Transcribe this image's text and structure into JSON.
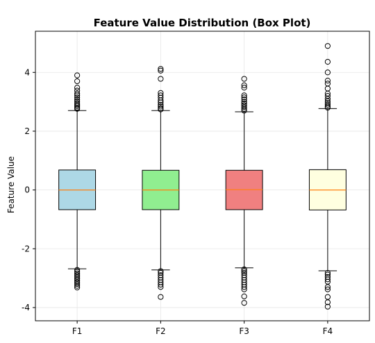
{
  "chart_data": {
    "type": "box",
    "title": "Feature Value Distribution (Box Plot)",
    "xlabel": "",
    "ylabel": "Feature Value",
    "ylim": [
      -4.45,
      5.4
    ],
    "yticks": [
      -4,
      -2,
      0,
      2,
      4
    ],
    "ytick_labels": [
      "-4",
      "-2",
      "0",
      "2",
      "4"
    ],
    "grid": true,
    "median_color": "#ff7f0e",
    "boxes": [
      {
        "name": "F1",
        "color": "#add8e6",
        "q1": -0.67,
        "median": 0.0,
        "q3": 0.68,
        "whisker_low": -2.68,
        "whisker_high": 2.7,
        "outliers": [
          3.9,
          3.7,
          3.48,
          3.38,
          3.28,
          3.22,
          3.15,
          3.08,
          3.02,
          2.96,
          2.9,
          2.85,
          2.8,
          2.76,
          -2.72,
          -2.78,
          -2.84,
          -2.9,
          -2.96,
          -3.02,
          -3.08,
          -3.14,
          -3.2,
          -3.26,
          -3.32
        ]
      },
      {
        "name": "F2",
        "color": "#90ee90",
        "q1": -0.67,
        "median": 0.0,
        "q3": 0.67,
        "whisker_low": -2.72,
        "whisker_high": 2.7,
        "outliers": [
          4.12,
          4.06,
          3.78,
          3.3,
          3.22,
          3.14,
          3.05,
          2.98,
          2.9,
          2.84,
          2.78,
          2.74,
          -2.76,
          -2.82,
          -2.9,
          -2.98,
          -3.06,
          -3.14,
          -3.22,
          -3.3,
          -3.64
        ]
      },
      {
        "name": "F3",
        "color": "#f08080",
        "q1": -0.67,
        "median": 0.01,
        "q3": 0.67,
        "whisker_low": -2.65,
        "whisker_high": 2.66,
        "outliers": [
          3.78,
          3.56,
          3.48,
          3.22,
          3.15,
          3.08,
          3.0,
          2.94,
          2.88,
          2.82,
          2.76,
          2.7,
          -2.7,
          -2.76,
          -2.82,
          -2.9,
          -2.98,
          -3.06,
          -3.14,
          -3.22,
          -3.3,
          -3.38,
          -3.62,
          -3.84
        ]
      },
      {
        "name": "F4",
        "color": "#ffffe0",
        "q1": -0.68,
        "median": 0.0,
        "q3": 0.69,
        "whisker_low": -2.75,
        "whisker_high": 2.77,
        "outliers": [
          4.9,
          4.36,
          4.0,
          3.72,
          3.62,
          3.45,
          3.28,
          3.2,
          3.1,
          3.02,
          2.96,
          2.9,
          2.84,
          2.8,
          -2.82,
          -2.88,
          -2.96,
          -3.04,
          -3.12,
          -3.3,
          -3.38,
          -3.64,
          -3.82,
          -3.97
        ]
      }
    ]
  }
}
